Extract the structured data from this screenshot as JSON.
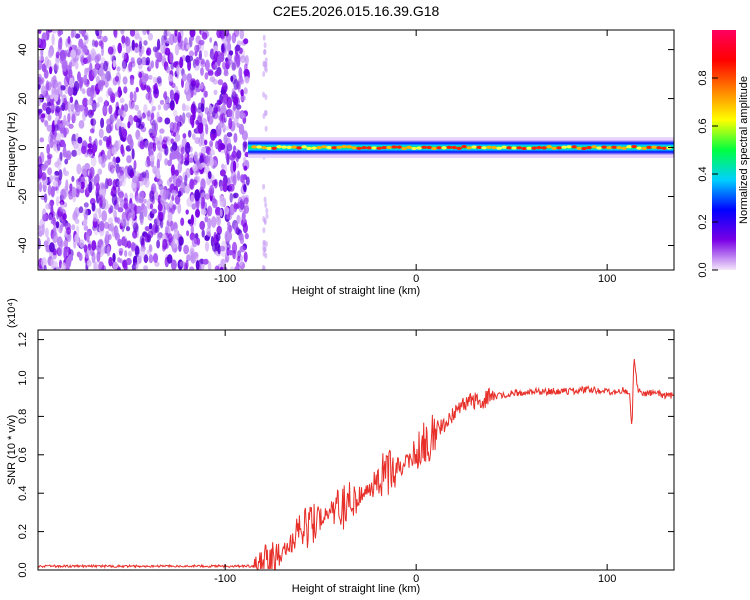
{
  "title": "C2E5.2026.015.16.39.G18",
  "chart_data": [
    {
      "type": "heatmap",
      "xlabel": "Height of straight line (km)",
      "ylabel": "Frequency (Hz)",
      "xlim": [
        -198,
        135
      ],
      "ylim": [
        -50,
        48
      ],
      "x_ticks": [
        -100,
        0,
        100
      ],
      "x_tick_labels": [
        "-100",
        "0",
        "100"
      ],
      "y_ticks": [
        -40,
        -20,
        0,
        20,
        40
      ],
      "y_tick_labels": [
        "-40",
        "-20",
        "0",
        "20",
        "40"
      ],
      "grid": false,
      "colorbar": {
        "label": "Normalized spectral amplitude",
        "range": [
          0,
          1
        ],
        "ticks": [
          0.0,
          0.2,
          0.4,
          0.6,
          0.8
        ],
        "tick_labels": [
          "0.0",
          "0.2",
          "0.4",
          "0.6",
          "0.8"
        ],
        "colors": [
          "#f3e6fa",
          "#7a00e6",
          "#0000ff",
          "#00d0ff",
          "#00ff40",
          "#ffff00",
          "#ff8000",
          "#ff0000",
          "#ff0060"
        ]
      },
      "noise_region_x": [
        -198,
        -88
      ],
      "signal_band": {
        "x": [
          -88,
          135
        ],
        "center_hz": 0,
        "half_width_hz": 3
      }
    },
    {
      "type": "line",
      "xlabel": "Height of straight line (km)",
      "ylabel": "SNR (10 * v/v)",
      "y_multiplier": "(x10⁴)",
      "xlim": [
        -198,
        135
      ],
      "ylim": [
        0,
        1.25
      ],
      "x_ticks": [
        -100,
        0,
        100
      ],
      "x_tick_labels": [
        "-100",
        "0",
        "100"
      ],
      "y_ticks": [
        0.0,
        0.2,
        0.4,
        0.6,
        0.8,
        1.0,
        1.2
      ],
      "y_tick_labels": [
        "0.0",
        "0.2",
        "0.4",
        "0.6",
        "0.8",
        "1.0",
        "1.2"
      ],
      "grid": false,
      "line_color": "#e8302a",
      "x": [
        -198,
        -150,
        -100,
        -85,
        -80,
        -75,
        -70,
        -65,
        -60,
        -55,
        -50,
        -45,
        -40,
        -35,
        -30,
        -25,
        -20,
        -15,
        -10,
        -5,
        0,
        5,
        10,
        15,
        20,
        25,
        30,
        40,
        50,
        60,
        70,
        80,
        90,
        100,
        105,
        108,
        110,
        112,
        113,
        114,
        116,
        120,
        125,
        130,
        135
      ],
      "y": [
        0.02,
        0.02,
        0.02,
        0.02,
        0.03,
        0.06,
        0.1,
        0.15,
        0.2,
        0.24,
        0.27,
        0.3,
        0.33,
        0.36,
        0.39,
        0.42,
        0.46,
        0.5,
        0.53,
        0.56,
        0.62,
        0.67,
        0.71,
        0.76,
        0.81,
        0.85,
        0.88,
        0.9,
        0.92,
        0.93,
        0.93,
        0.93,
        0.94,
        0.93,
        0.93,
        0.94,
        0.93,
        0.9,
        0.72,
        1.12,
        0.94,
        0.92,
        0.92,
        0.91,
        0.91
      ]
    }
  ]
}
